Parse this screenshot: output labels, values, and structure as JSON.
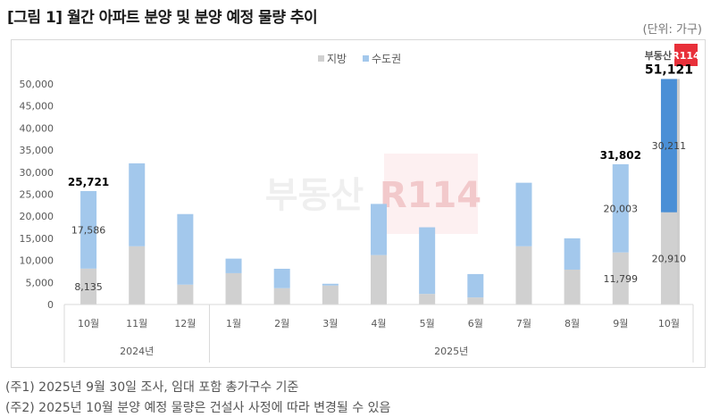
{
  "title": "[그림 1] 월간 아파트 분양 및 분양 예정 물량 추이",
  "unit": "(단위: 가구)",
  "logo_text": "부동산R114",
  "notes": [
    "(주1) 2025년 9월 30일 조사, 임대 포함 총가구수 기준",
    "(주2) 2025년 10월 분양 예정 물량은 건설사 사정에 따라 변경될 수 있음"
  ],
  "chart_data": {
    "type": "bar",
    "stacked": true,
    "categories": [
      "10월",
      "11월",
      "12월",
      "1월",
      "2월",
      "3월",
      "4월",
      "5월",
      "6월",
      "7월",
      "8월",
      "9월",
      "10월"
    ],
    "year_groups": [
      {
        "label": "2024년",
        "count": 3
      },
      {
        "label": "2025년",
        "count": 10
      }
    ],
    "series": [
      {
        "name": "지방",
        "color": "#d0d0d0",
        "values": [
          8135,
          13200,
          4500,
          7100,
          3700,
          4300,
          11200,
          2400,
          1600,
          13200,
          7900,
          11799,
          20910
        ]
      },
      {
        "name": "수도권",
        "color": "#a3c8ec",
        "values": [
          17586,
          18800,
          16000,
          3300,
          4400,
          400,
          11600,
          15100,
          5300,
          14400,
          7100,
          20003,
          30211
        ]
      }
    ],
    "highlight_color": "#4a8fd6",
    "totals": [
      25721,
      32000,
      20500,
      10400,
      8100,
      4700,
      22800,
      17500,
      6900,
      27600,
      15000,
      31802,
      51121
    ],
    "data_labels": {
      "0": {
        "지방": "8,135",
        "수도권": "17,586",
        "total": "25,721"
      },
      "11": {
        "지방": "11,799",
        "수도권": "20,003",
        "total": "31,802"
      },
      "12": {
        "지방": "20,910",
        "수도권": "30,211",
        "total": "51,121"
      }
    },
    "yticks": [
      "0",
      "5,000",
      "10,000",
      "15,000",
      "20,000",
      "25,000",
      "30,000",
      "35,000",
      "40,000",
      "45,000",
      "50,000"
    ],
    "ylim": [
      0,
      50000
    ],
    "legend": "top-center",
    "grid": false
  }
}
